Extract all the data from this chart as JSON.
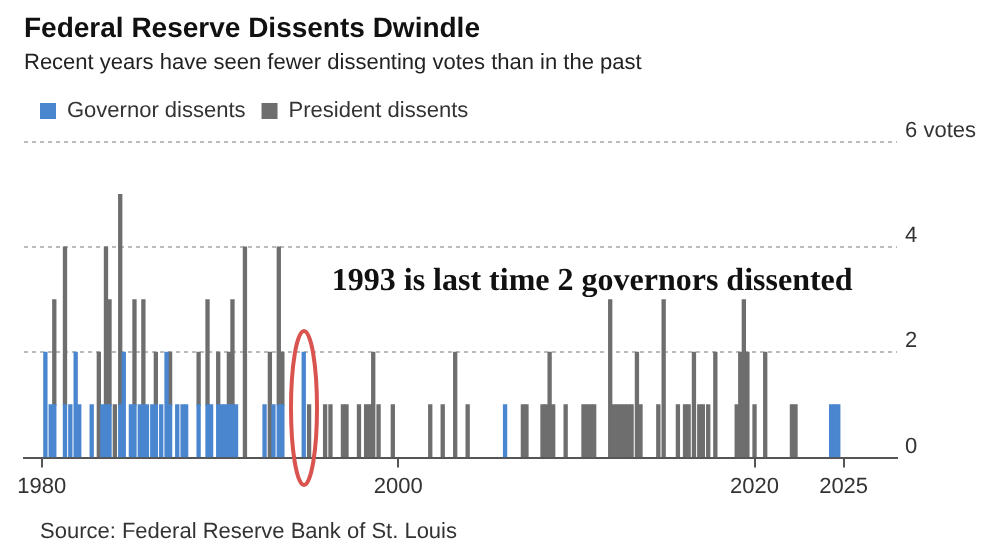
{
  "chart_data": {
    "type": "bar",
    "title": "Federal Reserve Dissents Dwindle",
    "subtitle": "Recent years have seen fewer dissenting votes than in the past",
    "x": [
      1980.2,
      1980.5,
      1980.7,
      1981.3,
      1981.6,
      1981.9,
      1982.1,
      1982.8,
      1983.2,
      1983.4,
      1983.6,
      1983.8,
      1984.1,
      1984.4,
      1984.6,
      1985.0,
      1985.2,
      1985.5,
      1985.7,
      1985.9,
      1986.2,
      1986.4,
      1986.7,
      1987.0,
      1987.2,
      1987.6,
      1987.9,
      1988.1,
      1988.8,
      1989.3,
      1989.5,
      1989.9,
      1990.1,
      1990.3,
      1990.5,
      1990.7,
      1990.9,
      1991.4,
      1992.5,
      1992.8,
      1993.0,
      1993.3,
      1993.5,
      1994.7,
      1995.0,
      1995.9,
      1996.2,
      1996.9,
      1997.1,
      1997.8,
      1998.2,
      1998.4,
      1998.6,
      1998.9,
      1999.7,
      2001.8,
      2002.5,
      2003.2,
      2003.9,
      2006.0,
      2007.0,
      2007.2,
      2008.1,
      2008.3,
      2008.5,
      2008.7,
      2009.4,
      2010.4,
      2010.6,
      2010.8,
      2011.0,
      2011.9,
      2012.1,
      2012.3,
      2012.5,
      2012.7,
      2012.9,
      2013.1,
      2013.4,
      2013.6,
      2014.6,
      2014.9,
      2015.7,
      2016.1,
      2016.3,
      2016.6,
      2016.9,
      2017.1,
      2017.4,
      2017.8,
      2019.0,
      2019.2,
      2019.4,
      2019.6,
      2020.0,
      2020.6,
      2022.1,
      2022.3,
      2024.3,
      2024.5,
      2024.7
    ],
    "series": [
      {
        "name": "Governor dissents",
        "color": "#4a86cf",
        "values": [
          2,
          1,
          1,
          1,
          1,
          2,
          1,
          1,
          null,
          1,
          1,
          1,
          null,
          1,
          2,
          1,
          1,
          1,
          1,
          1,
          1,
          1,
          1,
          2,
          1,
          1,
          1,
          1,
          1,
          1,
          1,
          1,
          1,
          1,
          1,
          1,
          1,
          null,
          1,
          null,
          1,
          1,
          1,
          2,
          null,
          null,
          null,
          null,
          null,
          null,
          null,
          null,
          null,
          null,
          null,
          null,
          null,
          null,
          null,
          1,
          null,
          null,
          null,
          null,
          null,
          null,
          null,
          null,
          null,
          null,
          null,
          null,
          null,
          null,
          null,
          null,
          null,
          null,
          null,
          null,
          null,
          null,
          null,
          null,
          null,
          null,
          null,
          null,
          null,
          null,
          null,
          null,
          null,
          null,
          null,
          null,
          null,
          null,
          1,
          1,
          1
        ]
      },
      {
        "name": "President dissents",
        "color": "#6e6e6e",
        "values": [
          null,
          null,
          2,
          3,
          null,
          null,
          null,
          null,
          2,
          null,
          3,
          2,
          1,
          4,
          null,
          null,
          2,
          null,
          2,
          null,
          null,
          1,
          null,
          null,
          1,
          null,
          null,
          null,
          1,
          2,
          null,
          1,
          null,
          null,
          1,
          2,
          null,
          4,
          null,
          2,
          null,
          3,
          1,
          null,
          1,
          1,
          1,
          1,
          1,
          1,
          1,
          1,
          2,
          1,
          1,
          1,
          1,
          2,
          1,
          null,
          1,
          1,
          1,
          1,
          2,
          1,
          1,
          1,
          1,
          1,
          1,
          3,
          1,
          1,
          1,
          1,
          1,
          1,
          2,
          1,
          1,
          3,
          1,
          1,
          1,
          2,
          1,
          1,
          1,
          2,
          1,
          2,
          3,
          2,
          1,
          2,
          1,
          1,
          null,
          null,
          null
        ]
      }
    ],
    "stacked": true,
    "xlim": [
      1979,
      2028
    ],
    "xticks": [
      1980,
      2000,
      2020,
      2025
    ],
    "ylim": [
      0,
      6
    ],
    "yticks": [
      0,
      2,
      4,
      {
        "value": 6,
        "label": "6 votes"
      }
    ],
    "grid": "y",
    "legend": "top left",
    "annotations": [
      {
        "text": "1993 is last time 2 governors dissented",
        "x": 1994.7,
        "y": 2
      },
      "Source: Federal Reserve Bank of St. Louis"
    ]
  }
}
